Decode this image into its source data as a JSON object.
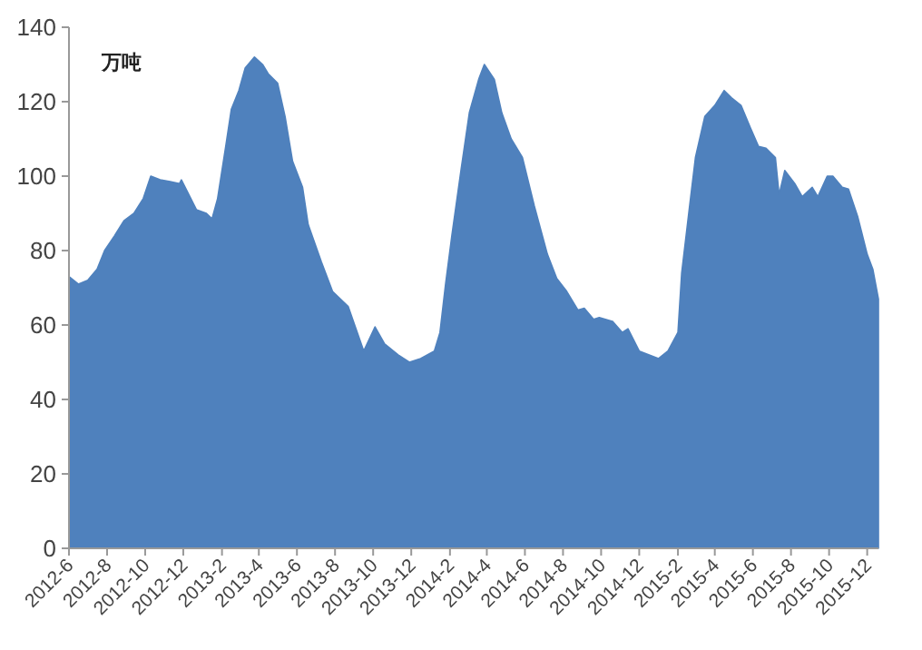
{
  "chart_data": {
    "type": "area",
    "ylabel": "万吨",
    "color": "#4f81bd",
    "ylim": [
      0,
      140
    ],
    "yticks": [
      0,
      20,
      40,
      60,
      80,
      100,
      120,
      140
    ],
    "xlim": [
      "2012-06-01",
      "2015-12-19"
    ],
    "xticks": [
      {
        "value": "2012-06",
        "label": "2012-6"
      },
      {
        "value": "2012-08",
        "label": "2012-8"
      },
      {
        "value": "2012-10",
        "label": "2012-10"
      },
      {
        "value": "2012-12",
        "label": "2012-12"
      },
      {
        "value": "2013-02",
        "label": "2013-2"
      },
      {
        "value": "2013-04",
        "label": "2013-4"
      },
      {
        "value": "2013-06",
        "label": "2013-6"
      },
      {
        "value": "2013-08",
        "label": "2013-8"
      },
      {
        "value": "2013-10",
        "label": "2013-10"
      },
      {
        "value": "2013-12",
        "label": "2013-12"
      },
      {
        "value": "2014-02",
        "label": "2014-2"
      },
      {
        "value": "2014-04",
        "label": "2014-4"
      },
      {
        "value": "2014-06",
        "label": "2014-6"
      },
      {
        "value": "2014-08",
        "label": "2014-8"
      },
      {
        "value": "2014-10",
        "label": "2014-10"
      },
      {
        "value": "2014-12",
        "label": "2014-12"
      },
      {
        "value": "2015-02",
        "label": "2015-2"
      },
      {
        "value": "2015-04",
        "label": "2015-4"
      },
      {
        "value": "2015-06",
        "label": "2015-6"
      },
      {
        "value": "2015-08",
        "label": "2015-8"
      },
      {
        "value": "2015-10",
        "label": "2015-10"
      },
      {
        "value": "2015-12",
        "label": "2015-12"
      }
    ],
    "x": [
      "2012-06-01",
      "2012-06-16",
      "2012-07-01",
      "2012-07-16",
      "2012-07-28",
      "2012-08-13",
      "2012-08-28",
      "2012-09-13",
      "2012-09-28",
      "2012-10-10",
      "2012-10-25",
      "2012-11-10",
      "2012-11-25",
      "2012-11-28",
      "2012-12-07",
      "2012-12-22",
      "2013-01-07",
      "2013-01-16",
      "2013-01-25",
      "2013-02-07",
      "2013-02-16",
      "2013-02-28",
      "2013-03-10",
      "2013-03-25",
      "2013-04-07",
      "2013-04-16",
      "2013-05-01",
      "2013-05-13",
      "2013-05-25",
      "2013-06-10",
      "2013-06-19",
      "2013-07-10",
      "2013-07-28",
      "2013-08-22",
      "2013-09-16",
      "2013-10-04",
      "2013-10-19",
      "2013-11-10",
      "2013-11-28",
      "2013-12-16",
      "2014-01-07",
      "2014-01-16",
      "2014-01-25",
      "2014-02-04",
      "2014-02-19",
      "2014-03-04",
      "2014-03-19",
      "2014-03-28",
      "2014-04-13",
      "2014-04-25",
      "2014-05-10",
      "2014-05-28",
      "2014-06-16",
      "2014-07-07",
      "2014-07-22",
      "2014-08-07",
      "2014-08-25",
      "2014-09-04",
      "2014-09-19",
      "2014-09-28",
      "2014-10-19",
      "2014-11-04",
      "2014-11-13",
      "2014-12-01",
      "2014-12-16",
      "2015-01-01",
      "2015-01-16",
      "2015-02-01",
      "2015-02-07",
      "2015-02-19",
      "2015-03-01",
      "2015-03-16",
      "2015-04-01",
      "2015-04-16",
      "2015-04-28",
      "2015-05-13",
      "2015-05-28",
      "2015-06-10",
      "2015-06-22",
      "2015-07-07",
      "2015-07-13",
      "2015-07-22",
      "2015-08-07",
      "2015-08-19",
      "2015-09-04",
      "2015-09-13",
      "2015-09-28",
      "2015-10-07",
      "2015-10-22",
      "2015-11-01",
      "2015-11-16",
      "2015-12-01",
      "2015-12-10",
      "2015-12-19"
    ],
    "values": [
      73,
      71,
      72,
      75,
      80,
      84,
      88,
      90,
      94,
      100,
      99,
      98.5,
      98,
      99,
      96,
      91,
      90,
      88.5,
      94,
      108,
      118,
      123,
      129,
      132,
      130,
      127.5,
      125,
      116,
      104,
      97,
      87,
      77,
      69,
      65,
      53,
      59.5,
      55,
      52,
      50,
      51,
      53,
      58,
      71,
      84,
      102,
      117,
      126,
      130,
      126,
      117,
      110,
      105,
      92,
      79,
      72.5,
      69,
      64,
      64.5,
      61.5,
      62,
      61,
      58,
      59,
      53,
      52,
      51,
      53,
      58,
      74,
      91,
      105,
      116,
      119,
      123,
      121,
      119,
      113,
      108,
      107.5,
      105,
      95,
      101.5,
      98,
      94.5,
      97,
      94.5,
      100,
      100,
      97,
      96.5,
      89,
      79,
      75,
      67
    ]
  }
}
